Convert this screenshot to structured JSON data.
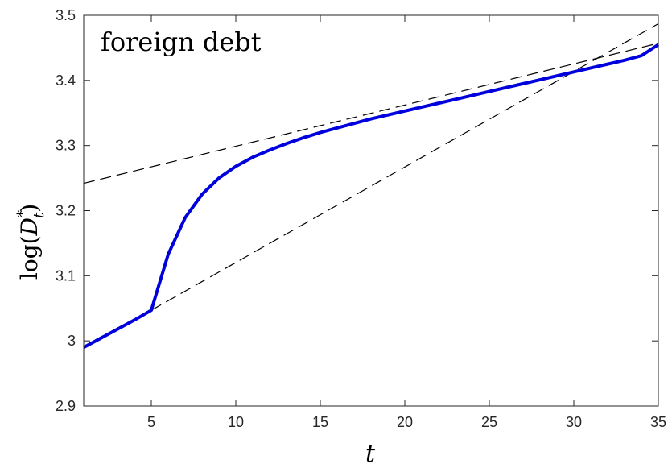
{
  "chart_data": {
    "type": "line",
    "title": "foreign debt",
    "xlabel": "t",
    "ylabel": {
      "prefix": "log(",
      "var": "D",
      "sup": "*",
      "sub": "t",
      "suffix": ")"
    },
    "xlim": [
      1,
      35
    ],
    "ylim": [
      2.9,
      3.5
    ],
    "xticks": [
      5,
      10,
      15,
      20,
      25,
      30,
      35
    ],
    "yticks": [
      2.9,
      3.0,
      3.1,
      3.2,
      3.3,
      3.4,
      3.5
    ],
    "xtick_labels": [
      "5",
      "10",
      "15",
      "20",
      "25",
      "30",
      "35"
    ],
    "ytick_labels": [
      "2.9",
      "3",
      "3.1",
      "3.2",
      "3.3",
      "3.4",
      "3.5"
    ],
    "grid": false,
    "series": [
      {
        "style": "solid",
        "color": "#0000dd",
        "x": [
          1,
          2,
          3,
          4,
          5,
          6,
          7,
          8,
          9,
          10,
          11,
          12,
          13,
          14,
          15,
          16,
          17,
          18,
          19,
          20,
          21,
          22,
          23,
          24,
          25,
          26,
          27,
          28,
          29,
          30,
          31,
          32,
          33,
          34,
          35
        ],
        "y": [
          2.99,
          3.004,
          3.018,
          3.032,
          3.047,
          3.133,
          3.189,
          3.225,
          3.25,
          3.268,
          3.282,
          3.293,
          3.303,
          3.312,
          3.32,
          3.327,
          3.334,
          3.341,
          3.347,
          3.353,
          3.359,
          3.365,
          3.371,
          3.377,
          3.383,
          3.389,
          3.395,
          3.401,
          3.407,
          3.413,
          3.419,
          3.425,
          3.431,
          3.438,
          3.455
        ]
      },
      {
        "style": "dashed",
        "color": "#000000",
        "x": [
          1,
          35
        ],
        "y": [
          3.242,
          3.457
        ]
      },
      {
        "style": "dashed",
        "color": "#000000",
        "x": [
          5,
          35
        ],
        "y": [
          3.047,
          3.487
        ]
      }
    ]
  }
}
